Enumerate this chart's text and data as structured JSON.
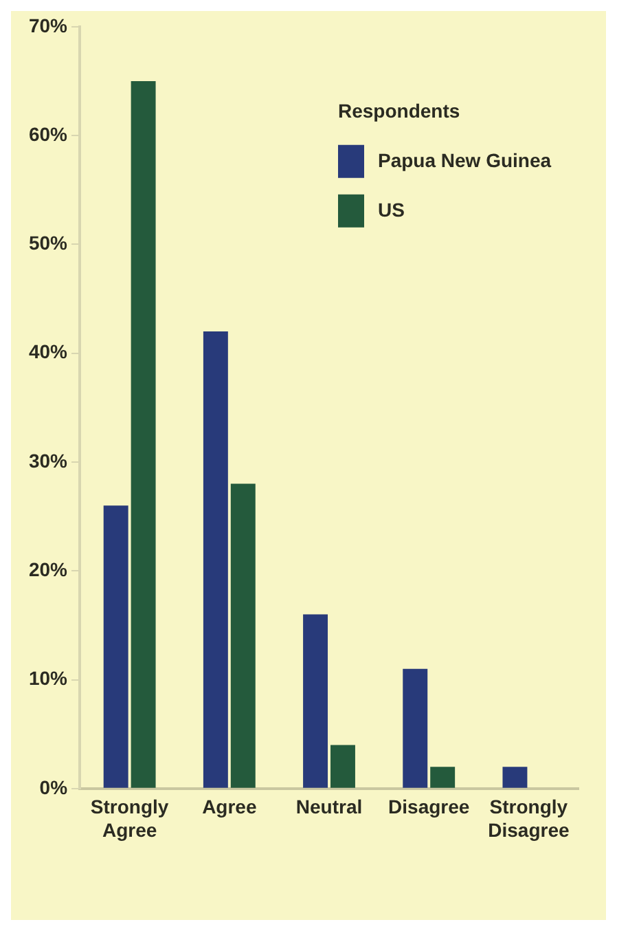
{
  "chart_data": {
    "type": "bar",
    "categories": [
      "Strongly Agree",
      "Agree",
      "Neutral",
      "Disagree",
      "Strongly Disagree"
    ],
    "series": [
      {
        "name": "Papua New Guinea",
        "color": "#283a7a",
        "values": [
          26,
          42,
          16,
          11,
          2
        ]
      },
      {
        "name": "US",
        "color": "#245a3c",
        "values": [
          65,
          28,
          4,
          2,
          0
        ]
      }
    ],
    "legend_title": "Respondents",
    "ylim": [
      0,
      70
    ],
    "yticks": [
      {
        "value": 0,
        "label": "0%"
      },
      {
        "value": 10,
        "label": "10%"
      },
      {
        "value": 20,
        "label": "20%"
      },
      {
        "value": 30,
        "label": "30%"
      },
      {
        "value": 40,
        "label": "40%"
      },
      {
        "value": 50,
        "label": "50%"
      },
      {
        "value": 60,
        "label": "60%"
      },
      {
        "value": 70,
        "label": "70%"
      }
    ],
    "grid": false,
    "legend": "top right"
  }
}
